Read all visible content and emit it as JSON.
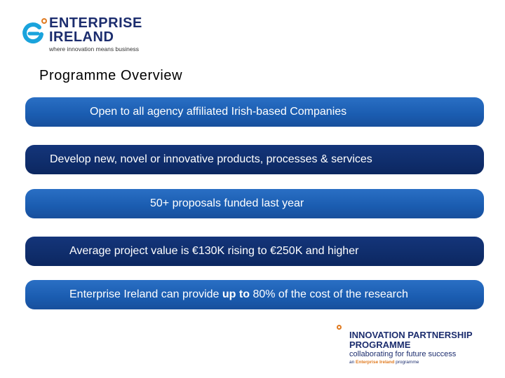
{
  "logo": {
    "line1": "ENTERPRISE",
    "line2": "IRELAND",
    "tagline": "where innovation means business",
    "colors": {
      "navy": "#1c2d6e",
      "cyan": "#1aa3dc",
      "orange": "#e07a1f"
    }
  },
  "title": "Programme Overview",
  "bullets": [
    {
      "text": "Open to all agency affiliated Irish-based  Companies"
    },
    {
      "text": "Develop new, novel or innovative products, processes & services"
    },
    {
      "text": "50+ proposals funded last year"
    },
    {
      "text": "Average project value is €130K rising to €250K and higher"
    },
    {
      "pre": "Enterprise Ireland can provide ",
      "bold": "up to",
      "post": " 80% of the cost of the research"
    }
  ],
  "bar_colors": {
    "light": "#1a5cb0",
    "dark": "#0f2d6b"
  },
  "ipp": {
    "line1": "INNOVATION PARTNERSHIP",
    "line2": "PROGRAMME",
    "line3": "collaborating for future success",
    "line4_pre": "an ",
    "line4_brand": "Enterprise Ireland",
    "line4_post": " programme"
  }
}
